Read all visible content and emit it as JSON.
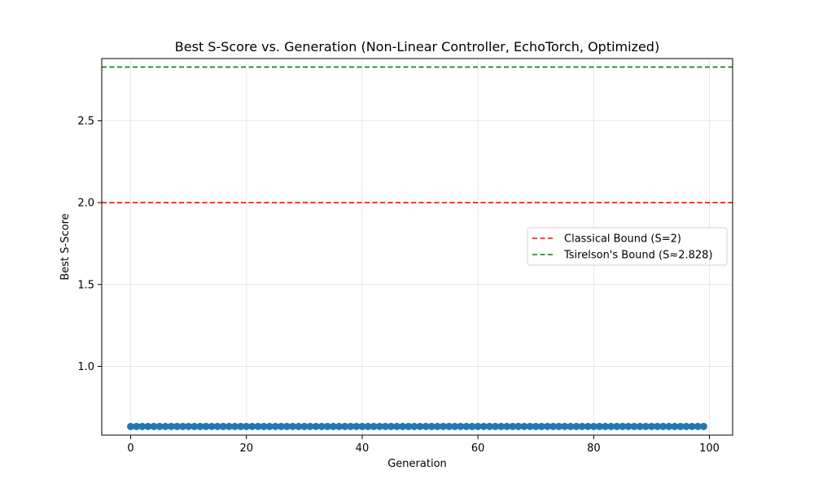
{
  "chart_data": {
    "type": "scatter",
    "title": "Best S-Score vs. Generation (Non-Linear Controller, EchoTorch, Optimized)",
    "xlabel": "Generation",
    "ylabel": "Best S-Score",
    "xlim": [
      -5,
      104
    ],
    "ylim": [
      0.58,
      2.88
    ],
    "xticks": [
      0,
      20,
      40,
      60,
      80,
      100
    ],
    "xtick_labels": [
      "0",
      "20",
      "40",
      "60",
      "80",
      "100"
    ],
    "yticks": [
      1.0,
      1.5,
      2.0,
      2.5
    ],
    "ytick_labels": [
      "1.0",
      "1.5",
      "2.0",
      "2.5"
    ],
    "grid": true,
    "legend_position": "center-right",
    "series": [
      {
        "color": "#1f77b4",
        "marker": "circle",
        "x_start": 0,
        "x_end": 99,
        "y_constant": 0.633
      }
    ],
    "reference_lines": [
      {
        "name": "Classical Bound (S=2)",
        "y": 2.0,
        "color": "#ff0000",
        "style": "dashed"
      },
      {
        "name": "Tsirelson's Bound (S≈2.828)",
        "y": 2.828,
        "color": "#008000",
        "style": "dashed"
      }
    ]
  }
}
